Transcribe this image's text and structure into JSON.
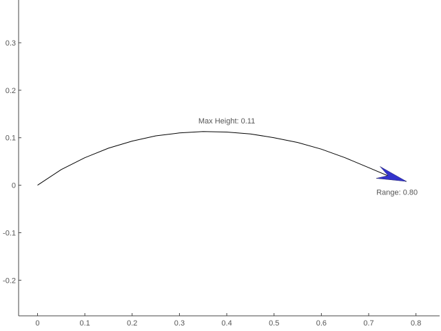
{
  "chart_data": {
    "type": "line",
    "title": "",
    "xlabel": "",
    "ylabel": "",
    "xlim": [
      -0.04,
      0.85
    ],
    "ylim": [
      -0.275,
      0.39
    ],
    "xticks": [
      0,
      0.1,
      0.2,
      0.3,
      0.4,
      0.5,
      0.6,
      0.7,
      0.8
    ],
    "xtick_labels": [
      "0",
      "0.1",
      "0.2",
      "0.3",
      "0.4",
      "0.5",
      "0.6",
      "0.7",
      "0.8"
    ],
    "yticks": [
      -0.2,
      -0.1,
      0,
      0.1,
      0.2,
      0.3
    ],
    "ytick_labels": [
      "-0.2",
      "-0.1",
      "0",
      "0.1",
      "0.2",
      "0.3"
    ],
    "grid": false,
    "series": [
      {
        "x": [
          0,
          0.05,
          0.1,
          0.15,
          0.2,
          0.25,
          0.3,
          0.35,
          0.4,
          0.45,
          0.5,
          0.55,
          0.6,
          0.65,
          0.7,
          0.75,
          0.78
        ],
        "y": [
          0,
          0.033,
          0.058,
          0.078,
          0.093,
          0.104,
          0.11,
          0.113,
          0.112,
          0.108,
          0.1,
          0.09,
          0.076,
          0.058,
          0.037,
          0.016,
          0.008
        ],
        "color": "#000000"
      }
    ],
    "arrow": {
      "from_x": 0.72,
      "from_y": 0.027,
      "to_x": 0.78,
      "to_y": 0.008,
      "color": "#3333cc"
    },
    "annotations": [
      {
        "text": "Max Height: 0.11",
        "x": 0.4,
        "y": 0.13
      },
      {
        "text": "Range: 0.80",
        "x": 0.76,
        "y": -0.02
      }
    ]
  }
}
